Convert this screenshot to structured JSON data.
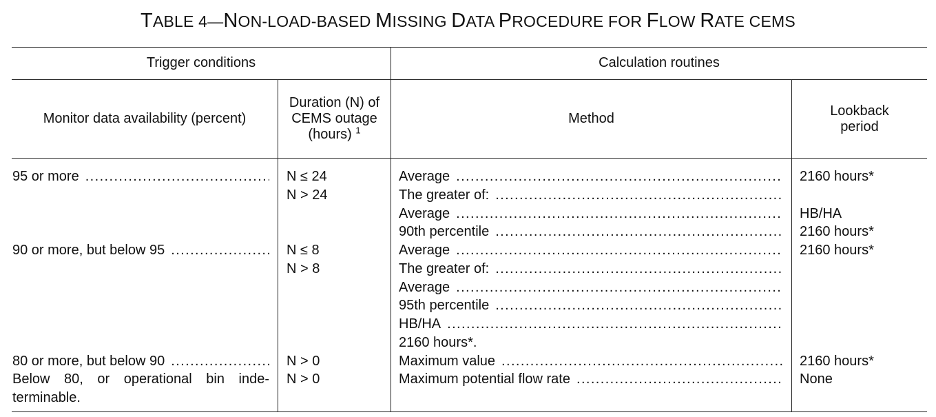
{
  "title": {
    "prefix": "T",
    "text": "ABLE 4—",
    "n": "N",
    "on_load": "ON-LOAD-BASED ",
    "m": "M",
    "issing": "ISSING ",
    "d": "D",
    "ata": "ATA ",
    "p": "P",
    "rocedure": "ROCEDURE FOR ",
    "f": "F",
    "low": "LOW ",
    "r": "R",
    "ate": "ATE CEMS"
  },
  "headers": {
    "trigger": "Trigger conditions",
    "calc": "Calculation routines",
    "availability": "Monitor data availability (percent)",
    "duration": "Duration (N) of CEMS outage (hours)",
    "duration_footnote": "1",
    "method": "Method",
    "lookback": "Lookback period"
  },
  "rows": [
    {
      "availability": [
        "95 or more"
      ],
      "durations": [
        "N ≤ 24",
        "N > 24"
      ],
      "methods": [
        "Average",
        "The greater of:",
        "Average",
        "90th percentile"
      ],
      "lookbacks": [
        "2160 hours*",
        "",
        "HB/HA",
        "2160 hours*"
      ]
    },
    {
      "availability": [
        "90 or more, but below 95"
      ],
      "durations": [
        "N ≤ 8",
        "N > 8"
      ],
      "methods": [
        "Average",
        "The greater of:",
        "Average",
        "95th percentile",
        "HB/HA",
        "2160 hours*."
      ],
      "lookbacks": [
        "2160 hours*",
        "",
        "",
        "",
        "",
        ""
      ]
    },
    {
      "availability": [
        "80 or more, but below 90"
      ],
      "durations": [
        "N > 0"
      ],
      "methods": [
        "Maximum value"
      ],
      "lookbacks": [
        "2160 hours*"
      ]
    },
    {
      "availability": [
        "Below 80, or operational bin inde-",
        "terminable."
      ],
      "durations": [
        "N > 0"
      ],
      "methods": [
        "Maximum potential flow rate"
      ],
      "lookbacks": [
        "None"
      ]
    }
  ]
}
